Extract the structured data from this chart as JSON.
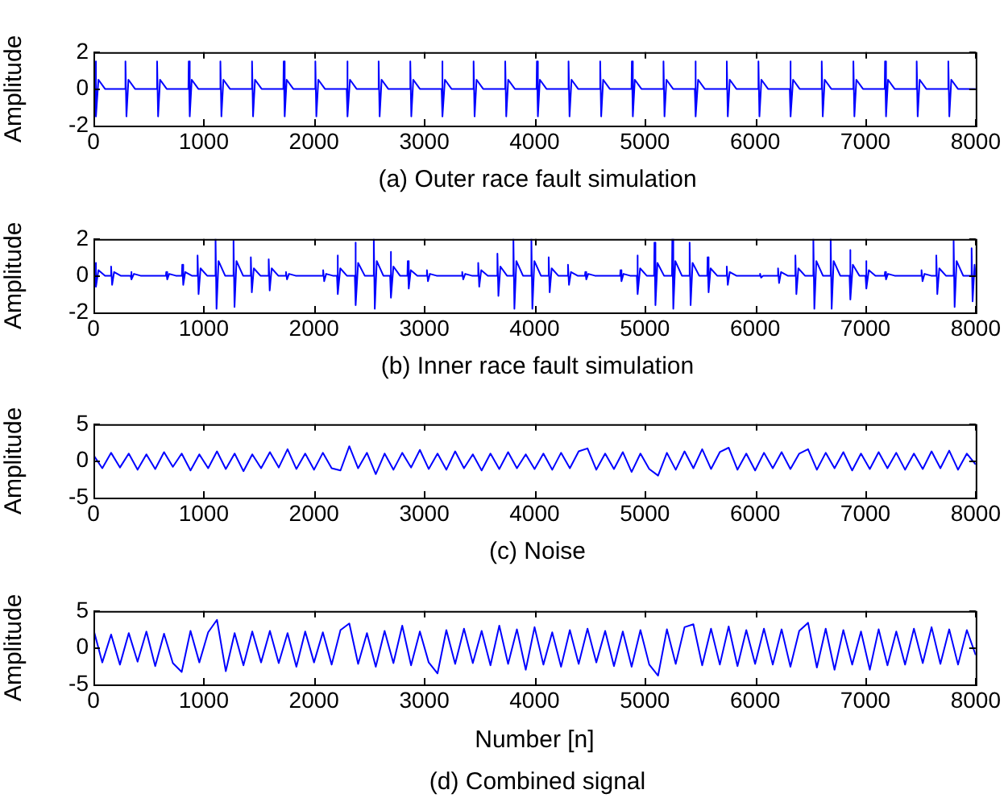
{
  "chart_data": [
    {
      "type": "line",
      "ylabel": "Amplitude",
      "annotations": [
        "(a) Outer race fault simulation"
      ],
      "xlim": [
        0,
        8000
      ],
      "xticks": [
        0,
        1000,
        2000,
        3000,
        4000,
        5000,
        6000,
        7000,
        8000
      ],
      "ylim": [
        -2,
        2
      ],
      "yticks": [
        -2,
        0,
        2
      ],
      "marker": "none",
      "line_style": "solid",
      "series": [
        {
          "color": "#0000ff",
          "x": [
            0,
            15,
            18,
            27,
            45,
            105,
            287,
            290,
            299,
            317,
            377,
            574,
            577,
            586,
            604,
            664,
            861,
            864,
            873,
            891,
            951,
            1148,
            1151,
            1160,
            1178,
            1238,
            1435,
            1438,
            1447,
            1465,
            1525,
            1722,
            1725,
            1734,
            1752,
            1812,
            2009,
            2012,
            2021,
            2039,
            2099,
            2296,
            2299,
            2308,
            2326,
            2386,
            2583,
            2586,
            2595,
            2613,
            2673,
            2870,
            2873,
            2882,
            2900,
            2960,
            3157,
            3160,
            3169,
            3187,
            3247,
            3444,
            3447,
            3456,
            3474,
            3534,
            3731,
            3734,
            3743,
            3761,
            3821,
            4018,
            4021,
            4030,
            4048,
            4108,
            4305,
            4308,
            4317,
            4335,
            4395,
            4592,
            4595,
            4604,
            4622,
            4682,
            4879,
            4882,
            4891,
            4909,
            4969,
            5166,
            5169,
            5178,
            5196,
            5256,
            5453,
            5456,
            5465,
            5483,
            5543,
            5740,
            5743,
            5752,
            5770,
            5830,
            6027,
            6030,
            6039,
            6057,
            6117,
            6314,
            6317,
            6326,
            6344,
            6404,
            6601,
            6604,
            6613,
            6631,
            6691,
            6888,
            6891,
            6900,
            6918,
            6978,
            7175,
            7178,
            7187,
            7205,
            7265,
            7462,
            7465,
            7474,
            7492,
            7552,
            7749,
            7752,
            7761,
            7779,
            7839,
            8000
          ],
          "values": [
            0,
            0,
            1.5,
            -1.5,
            0.5,
            0,
            0,
            1.5,
            -1.5,
            0.5,
            0,
            0,
            1.5,
            -1.5,
            0.5,
            0,
            0,
            1.5,
            -1.5,
            0.5,
            0,
            0,
            1.5,
            -1.5,
            0.5,
            0,
            0,
            1.5,
            -1.5,
            0.5,
            0,
            0,
            1.5,
            -1.5,
            0.5,
            0,
            0,
            1.5,
            -1.5,
            0.5,
            0,
            0,
            1.5,
            -1.5,
            0.5,
            0,
            0,
            1.5,
            -1.5,
            0.5,
            0,
            0,
            1.5,
            -1.5,
            0.5,
            0,
            0,
            1.5,
            -1.5,
            0.5,
            0,
            0,
            1.5,
            -1.5,
            0.5,
            0,
            0,
            1.5,
            -1.5,
            0.5,
            0,
            0,
            1.5,
            -1.5,
            0.5,
            0,
            0,
            1.5,
            -1.5,
            0.5,
            0,
            0,
            1.5,
            -1.5,
            0.5,
            0,
            0,
            1.5,
            -1.5,
            0.5,
            0,
            0,
            1.5,
            -1.5,
            0.5,
            0,
            0,
            1.5,
            -1.5,
            0.5,
            0,
            0,
            1.5,
            -1.5,
            0.5,
            0,
            0,
            1.5,
            -1.5,
            0.5,
            0,
            0,
            1.5,
            -1.5,
            0.5,
            0,
            0,
            1.5,
            -1.5,
            0.5,
            0,
            0,
            1.5,
            -1.5,
            0.5,
            0,
            0,
            1.5,
            -1.5,
            0.5,
            0,
            0,
            1.5,
            -1.5,
            0.5,
            0,
            0,
            1.5,
            -1.5,
            0.5,
            0,
            0
          ]
        }
      ]
    },
    {
      "type": "line",
      "ylabel": "Amplitude",
      "annotations": [
        "(b) Inner race fault simulation"
      ],
      "xlim": [
        0,
        8000
      ],
      "xticks": [
        0,
        1000,
        2000,
        3000,
        4000,
        5000,
        6000,
        7000,
        8000
      ],
      "ylim": [
        -2,
        2
      ],
      "yticks": [
        -2,
        0,
        2
      ],
      "marker": "none",
      "line_style": "solid",
      "series": [
        {
          "color": "#0000ff",
          "x": [
            0,
            15,
            18,
            27,
            45,
            105,
            157,
            160,
            169,
            187,
            247,
            337,
            340,
            349,
            367,
            427,
            657,
            660,
            669,
            687,
            747,
            802,
            805,
            814,
            832,
            892,
            941,
            944,
            953,
            971,
            1031,
            1104,
            1107,
            1116,
            1134,
            1194,
            1267,
            1270,
            1279,
            1297,
            1357,
            1424,
            1427,
            1436,
            1454,
            1514,
            1586,
            1589,
            1598,
            1616,
            1676,
            1743,
            1746,
            1755,
            1773,
            1833,
            2080,
            2083,
            2092,
            2110,
            2170,
            2208,
            2211,
            2220,
            2238,
            2298,
            2370,
            2373,
            2382,
            2400,
            2460,
            2539,
            2542,
            2551,
            2569,
            2629,
            2690,
            2693,
            2702,
            2720,
            2780,
            2847,
            2850,
            2859,
            2877,
            2937,
            3021,
            3024,
            3033,
            3051,
            3111,
            3341,
            3344,
            3353,
            3371,
            3431,
            3486,
            3489,
            3498,
            3516,
            3576,
            3660,
            3663,
            3672,
            3690,
            3750,
            3805,
            3808,
            3817,
            3835,
            3895,
            3968,
            3971,
            3980,
            3998,
            4058,
            4125,
            4128,
            4137,
            4155,
            4215,
            4300,
            4303,
            4312,
            4330,
            4390,
            4457,
            4460,
            4469,
            4487,
            4547,
            4776,
            4779,
            4788,
            4806,
            4866,
            4927,
            4930,
            4939,
            4957,
            5017,
            5084,
            5087,
            5096,
            5114,
            5174,
            5246,
            5249,
            5258,
            5276,
            5336,
            5403,
            5406,
            5415,
            5433,
            5493,
            5566,
            5569,
            5578,
            5596,
            5656,
            5740,
            5743,
            5752,
            5770,
            5830,
            6042,
            6045,
            6054,
            6072,
            6132,
            6205,
            6208,
            6217,
            6235,
            6295,
            6362,
            6365,
            6374,
            6392,
            6452,
            6525,
            6528,
            6537,
            6555,
            6615,
            6682,
            6685,
            6694,
            6712,
            6772,
            6856,
            6859,
            6868,
            6886,
            6946,
            7001,
            7004,
            7013,
            7031,
            7091,
            7175,
            7178,
            7187,
            7205,
            7265,
            7506,
            7509,
            7518,
            7536,
            7596,
            7640,
            7643,
            7652,
            7670,
            7730,
            7797,
            7800,
            7809,
            7827,
            7887,
            7960,
            7963,
            7972,
            7990,
            8000
          ],
          "values": [
            0,
            0,
            0.7,
            -0.6,
            0.3,
            0,
            0,
            0.5,
            -0.5,
            0.2,
            0,
            0,
            0.2,
            -0.2,
            0.1,
            0,
            0,
            0.2,
            -0.2,
            0.1,
            0,
            0,
            0.6,
            -0.5,
            0.2,
            0,
            0,
            1.1,
            -1.0,
            0.4,
            0,
            0,
            2.0,
            -1.8,
            0.8,
            0,
            0,
            1.9,
            -1.7,
            0.8,
            0,
            0,
            1.0,
            -0.9,
            0.4,
            0,
            0,
            0.9,
            -0.8,
            0.4,
            0,
            0,
            0.2,
            -0.2,
            0.1,
            0,
            0,
            0.3,
            -0.3,
            0.1,
            0,
            0,
            1.1,
            -1.0,
            0.4,
            0,
            0,
            1.8,
            -1.6,
            0.7,
            0,
            0,
            2.0,
            -1.8,
            0.8,
            0,
            0,
            1.3,
            -1.2,
            0.5,
            0,
            0,
            0.8,
            -0.7,
            0.3,
            0,
            0,
            0.3,
            -0.3,
            0.1,
            0,
            0,
            0.2,
            -0.2,
            0.1,
            0,
            0,
            0.7,
            -0.6,
            0.3,
            0,
            0,
            1.2,
            -1.1,
            0.5,
            0,
            0,
            2.0,
            -1.8,
            0.8,
            0,
            0,
            2.0,
            -1.8,
            0.8,
            0,
            0,
            1.0,
            -0.9,
            0.4,
            0,
            0,
            0.6,
            -0.5,
            0.2,
            0,
            0,
            0.2,
            -0.2,
            0.1,
            0,
            0,
            0.3,
            -0.3,
            0.1,
            0,
            0,
            1.1,
            -1.0,
            0.4,
            0,
            0,
            1.8,
            -1.6,
            0.7,
            0,
            0,
            2.0,
            -1.8,
            0.8,
            0,
            0,
            1.8,
            -1.6,
            0.7,
            0,
            0,
            1.0,
            -0.9,
            0.4,
            0,
            0,
            0.5,
            -0.5,
            0.2,
            0,
            0,
            0.1,
            -0.1,
            0,
            0,
            0,
            0.4,
            -0.4,
            0.2,
            0,
            0,
            1.1,
            -1.0,
            0.4,
            0,
            0,
            2.0,
            -1.8,
            0.8,
            0,
            0,
            2.0,
            -1.8,
            0.8,
            0,
            0,
            1.4,
            -1.3,
            0.6,
            0,
            0,
            0.8,
            -0.7,
            0.3,
            0,
            0,
            0.2,
            -0.2,
            0.1,
            0,
            0,
            0.3,
            -0.3,
            0.1,
            0,
            0,
            1.1,
            -1.0,
            0.4,
            0,
            0,
            1.9,
            -1.7,
            0.8,
            0,
            0,
            1.5,
            -1.4,
            0.6,
            0
          ]
        }
      ]
    },
    {
      "type": "line",
      "ylabel": "Amplitude",
      "annotations": [
        "(c) Noise"
      ],
      "xlim": [
        0,
        8000
      ],
      "xticks": [
        0,
        1000,
        2000,
        3000,
        4000,
        5000,
        6000,
        7000,
        8000
      ],
      "ylim": [
        -5,
        5
      ],
      "yticks": [
        -5,
        0,
        5
      ],
      "marker": "none",
      "line_style": "solid",
      "series": [
        {
          "color": "#0000ff",
          "x": [
            0,
            80,
            160,
            240,
            320,
            400,
            480,
            560,
            640,
            720,
            800,
            880,
            960,
            1040,
            1120,
            1200,
            1280,
            1360,
            1440,
            1520,
            1600,
            1680,
            1760,
            1840,
            1920,
            2000,
            2080,
            2160,
            2240,
            2320,
            2400,
            2480,
            2560,
            2640,
            2720,
            2800,
            2880,
            2960,
            3040,
            3120,
            3200,
            3280,
            3360,
            3440,
            3520,
            3600,
            3680,
            3760,
            3840,
            3920,
            4000,
            4080,
            4160,
            4240,
            4320,
            4400,
            4480,
            4560,
            4640,
            4720,
            4800,
            4880,
            4960,
            5040,
            5120,
            5200,
            5280,
            5360,
            5440,
            5520,
            5600,
            5680,
            5760,
            5840,
            5920,
            6000,
            6080,
            6160,
            6240,
            6320,
            6400,
            6480,
            6560,
            6640,
            6720,
            6800,
            6880,
            6960,
            7040,
            7120,
            7200,
            7280,
            7360,
            7440,
            7520,
            7600,
            7680,
            7760,
            7840,
            7920,
            8000
          ],
          "values": [
            0.8,
            -1.0,
            1.1,
            -0.9,
            1.0,
            -1.2,
            0.9,
            -1.1,
            1.2,
            -0.8,
            1.0,
            -1.3,
            0.9,
            -1.0,
            1.3,
            -1.1,
            1.0,
            -1.4,
            0.9,
            -1.0,
            1.2,
            -0.9,
            1.6,
            -1.1,
            1.0,
            -1.2,
            1.1,
            -1.0,
            -1.3,
            2.0,
            -1.0,
            1.1,
            -1.8,
            1.0,
            -1.2,
            1.1,
            -0.9,
            1.5,
            -1.1,
            1.0,
            -1.2,
            1.3,
            -1.0,
            0.9,
            -1.3,
            1.0,
            -1.1,
            1.2,
            -1.0,
            0.9,
            -1.1,
            1.0,
            -1.2,
            1.1,
            -1.0,
            1.3,
            1.7,
            -1.2,
            1.0,
            -1.1,
            1.2,
            -1.5,
            1.0,
            -1.1,
            -2.0,
            1.1,
            -1.2,
            1.3,
            -1.0,
            1.6,
            -1.1,
            1.2,
            1.8,
            -1.2,
            1.0,
            -1.3,
            1.1,
            -1.0,
            1.2,
            -1.1,
            1.0,
            1.6,
            -1.2,
            1.1,
            -1.0,
            1.2,
            -1.3,
            1.0,
            -1.1,
            1.2,
            -1.0,
            1.1,
            -1.2,
            1.0,
            -1.1,
            1.3,
            -1.0,
            1.4,
            -1.2,
            1.0,
            -0.5
          ]
        }
      ]
    },
    {
      "type": "line",
      "ylabel": "Amplitude",
      "xlabel": "Number [n]",
      "annotations": [
        "(d) Combined signal"
      ],
      "xlim": [
        0,
        8000
      ],
      "xticks": [
        0,
        1000,
        2000,
        3000,
        4000,
        5000,
        6000,
        7000,
        8000
      ],
      "ylim": [
        -5,
        5
      ],
      "yticks": [
        -5,
        0,
        5
      ],
      "marker": "none",
      "line_style": "solid",
      "series": [
        {
          "color": "#0000ff",
          "x": [
            0,
            80,
            160,
            240,
            320,
            400,
            480,
            560,
            640,
            720,
            800,
            880,
            960,
            1040,
            1120,
            1200,
            1280,
            1360,
            1440,
            1520,
            1600,
            1680,
            1760,
            1840,
            1920,
            2000,
            2080,
            2160,
            2240,
            2320,
            2400,
            2480,
            2560,
            2640,
            2720,
            2800,
            2880,
            2960,
            3040,
            3120,
            3200,
            3280,
            3360,
            3440,
            3520,
            3600,
            3680,
            3760,
            3840,
            3920,
            4000,
            4080,
            4160,
            4240,
            4320,
            4400,
            4480,
            4560,
            4640,
            4720,
            4800,
            4880,
            4960,
            5040,
            5120,
            5200,
            5280,
            5360,
            5440,
            5520,
            5600,
            5680,
            5760,
            5840,
            5920,
            6000,
            6080,
            6160,
            6240,
            6320,
            6400,
            6480,
            6560,
            6640,
            6720,
            6800,
            6880,
            6960,
            7040,
            7120,
            7200,
            7280,
            7360,
            7440,
            7520,
            7600,
            7680,
            7760,
            7840,
            7920,
            8000
          ],
          "values": [
            2.5,
            -2.0,
            1.8,
            -2.3,
            2.0,
            -1.9,
            2.2,
            -2.5,
            1.9,
            -2.1,
            -3.3,
            2.3,
            -2.0,
            2.1,
            3.8,
            -3.2,
            2.0,
            -2.4,
            2.2,
            -2.0,
            2.3,
            -2.1,
            2.0,
            -2.6,
            2.2,
            -2.0,
            2.1,
            -2.3,
            2.4,
            3.3,
            -2.2,
            2.0,
            -2.6,
            2.3,
            -2.1,
            3.0,
            -2.4,
            2.2,
            -2.0,
            -3.5,
            2.4,
            -2.2,
            2.6,
            -2.1,
            2.3,
            -2.4,
            3.0,
            -2.2,
            2.5,
            -3.0,
            2.8,
            -2.3,
            2.1,
            -2.6,
            2.4,
            -2.2,
            2.6,
            -2.0,
            2.3,
            -2.5,
            2.2,
            -2.6,
            2.4,
            -2.3,
            -3.8,
            2.5,
            -2.2,
            2.8,
            3.2,
            -2.4,
            2.6,
            -2.3,
            2.9,
            -2.5,
            2.4,
            -2.2,
            2.6,
            -2.3,
            2.5,
            -2.6,
            2.3,
            3.4,
            -2.7,
            2.6,
            -3.0,
            2.4,
            -2.3,
            2.2,
            -3.0,
            2.5,
            -2.4,
            2.2,
            -2.3,
            2.6,
            -2.1,
            2.8,
            -2.2,
            2.5,
            -2.3,
            2.4,
            -1.0
          ]
        }
      ]
    }
  ]
}
